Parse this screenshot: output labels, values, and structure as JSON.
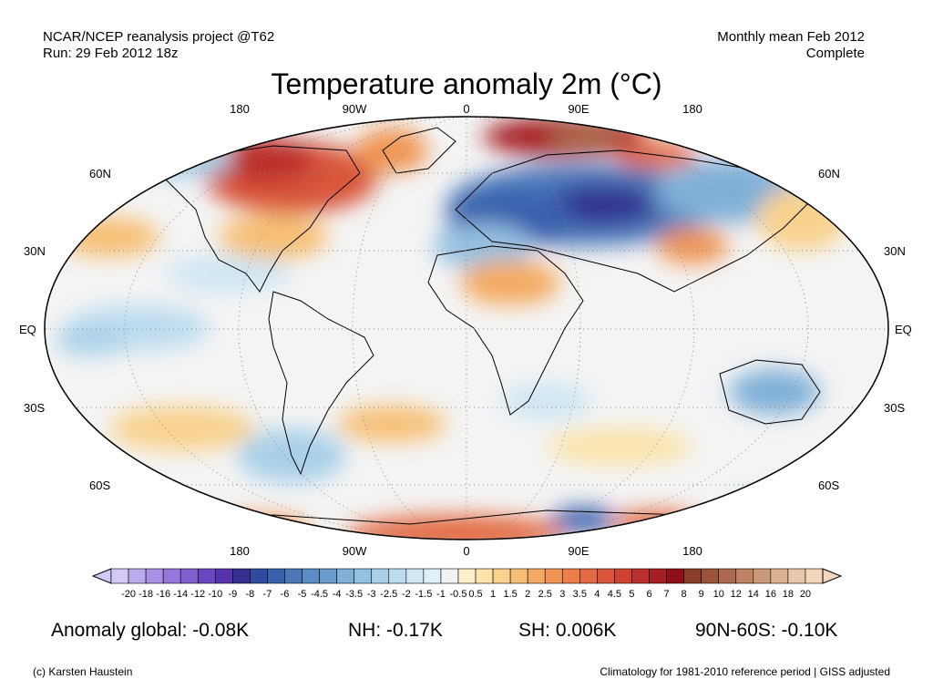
{
  "header": {
    "left_line1": "NCAR/NCEP reanalysis project @T62",
    "left_line2": "Run: 29 Feb 2012 18z",
    "right_line1": "Monthly mean Feb 2012",
    "right_line2": "Complete"
  },
  "title": "Temperature anomaly 2m (°C)",
  "lon_labels": [
    "180",
    "90W",
    "0",
    "90E",
    "180"
  ],
  "lat_labels": [
    "60N",
    "30N",
    "EQ",
    "30S",
    "60S"
  ],
  "colorbar": {
    "labels": [
      "-20",
      "-18",
      "-16",
      "-14",
      "-12",
      "-10",
      "-9",
      "-8",
      "-7",
      "-6",
      "-5",
      "-4.5",
      "-4",
      "-3.5",
      "-3",
      "-2.5",
      "-2",
      "-1.5",
      "-1",
      "-0.5",
      "0.5",
      "1",
      "1.5",
      "2",
      "2.5",
      "3",
      "3.5",
      "4",
      "4.5",
      "5",
      "6",
      "7",
      "8",
      "9",
      "10",
      "12",
      "14",
      "16",
      "18",
      "20"
    ],
    "colors": [
      "#d4c8f7",
      "#bcaaf0",
      "#a890e6",
      "#9478dc",
      "#7e60cf",
      "#6848c0",
      "#5535ad",
      "#33308f",
      "#2f4a9e",
      "#3a61ad",
      "#4b78bb",
      "#5a8cc6",
      "#6b9ecf",
      "#80b0d8",
      "#95c1e1",
      "#a9d0e9",
      "#bcdcef",
      "#cfe6f3",
      "#e0f0f8",
      "#f2f2f2",
      "#fbf0c8",
      "#fbe3a9",
      "#f9d28e",
      "#f7bf75",
      "#f4ab62",
      "#f09655",
      "#ea7f4b",
      "#e36a42",
      "#d9553a",
      "#cd4233",
      "#bb2f2c",
      "#a61e24",
      "#8c0f1a",
      "#8a3d28",
      "#9c5438",
      "#ad6a4c",
      "#bd8261",
      "#cc9a7a",
      "#dab292",
      "#e8c7aa",
      "#f4d6bd"
    ]
  },
  "stats": {
    "global": "Anomaly global: -0.08K",
    "nh": "NH: -0.17K",
    "sh": "SH: 0.006K",
    "arctic": "90N-60S: -0.10K"
  },
  "footer": {
    "left": "(c) Karsten Haustein",
    "right": "Climatology for 1981-2010 reference period | GISS adjusted"
  }
}
